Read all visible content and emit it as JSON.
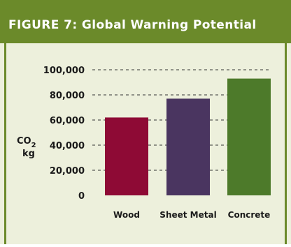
{
  "header": {
    "title": "FIGURE 7: Global Warning Potential"
  },
  "chart_data": {
    "type": "bar",
    "title": "FIGURE 7: Global Warning Potential",
    "categories": [
      "Wood",
      "Sheet Metal",
      "Concrete"
    ],
    "values": [
      62000,
      77000,
      93000
    ],
    "ylabel": {
      "main": "CO",
      "sub": "2",
      "unit": "kg"
    },
    "ylim": [
      0,
      100000
    ],
    "yticks": [
      "0",
      "20,000",
      "40,000",
      "60,000",
      "80,000",
      "100,000"
    ],
    "grid": true,
    "colors": [
      "#8e0a35",
      "#4a3560",
      "#4d7a2a"
    ],
    "background": "#edf0dc",
    "header_color": "#6b8a2a"
  }
}
